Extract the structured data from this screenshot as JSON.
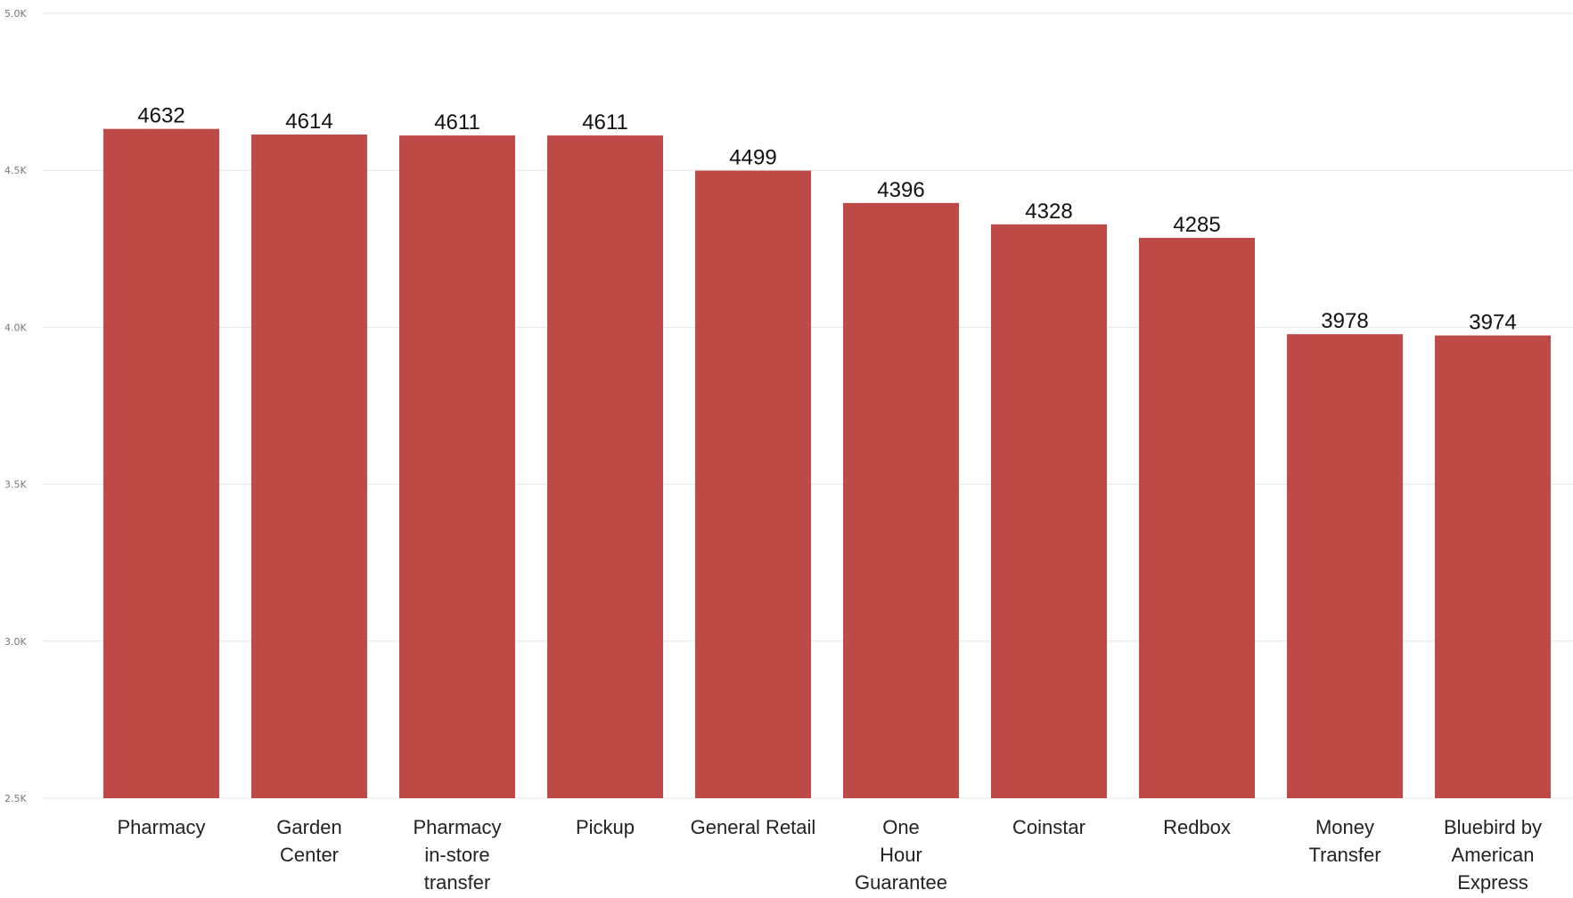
{
  "chart_data": {
    "type": "bar",
    "categories": [
      "Pharmacy",
      "Garden Center",
      "Pharmacy in-store transfer",
      "Pickup",
      "General Retail",
      "One Hour Guarantee",
      "Coinstar",
      "Redbox",
      "Money Transfer",
      "Bluebird by American Express"
    ],
    "category_lines": [
      [
        "Pharmacy"
      ],
      [
        "Garden",
        "Center"
      ],
      [
        "Pharmacy",
        "in-store",
        "transfer"
      ],
      [
        "Pickup"
      ],
      [
        "General Retail"
      ],
      [
        "One",
        "Hour",
        "Guarantee"
      ],
      [
        "Coinstar"
      ],
      [
        "Redbox"
      ],
      [
        "Money",
        "Transfer"
      ],
      [
        "Bluebird by",
        "American",
        "Express"
      ]
    ],
    "values": [
      4632,
      4614,
      4611,
      4611,
      4499,
      4396,
      4328,
      4285,
      3978,
      3974
    ],
    "data_labels": [
      "4632",
      "4614",
      "4611",
      "4611",
      "4499",
      "4396",
      "4328",
      "4285",
      "3978",
      "3974"
    ],
    "ylim": [
      2500,
      5000
    ],
    "y_ticks": [
      {
        "value": 2500,
        "label": "2.5K"
      },
      {
        "value": 3000,
        "label": "3.0K"
      },
      {
        "value": 3500,
        "label": "3.5K"
      },
      {
        "value": 4000,
        "label": "4.0K"
      },
      {
        "value": 4500,
        "label": "4.5K"
      },
      {
        "value": 5000,
        "label": "5.0K"
      }
    ],
    "grid": true,
    "legend": "none",
    "bar_color": "#be4a48",
    "title": "",
    "xlabel": "",
    "ylabel": ""
  }
}
